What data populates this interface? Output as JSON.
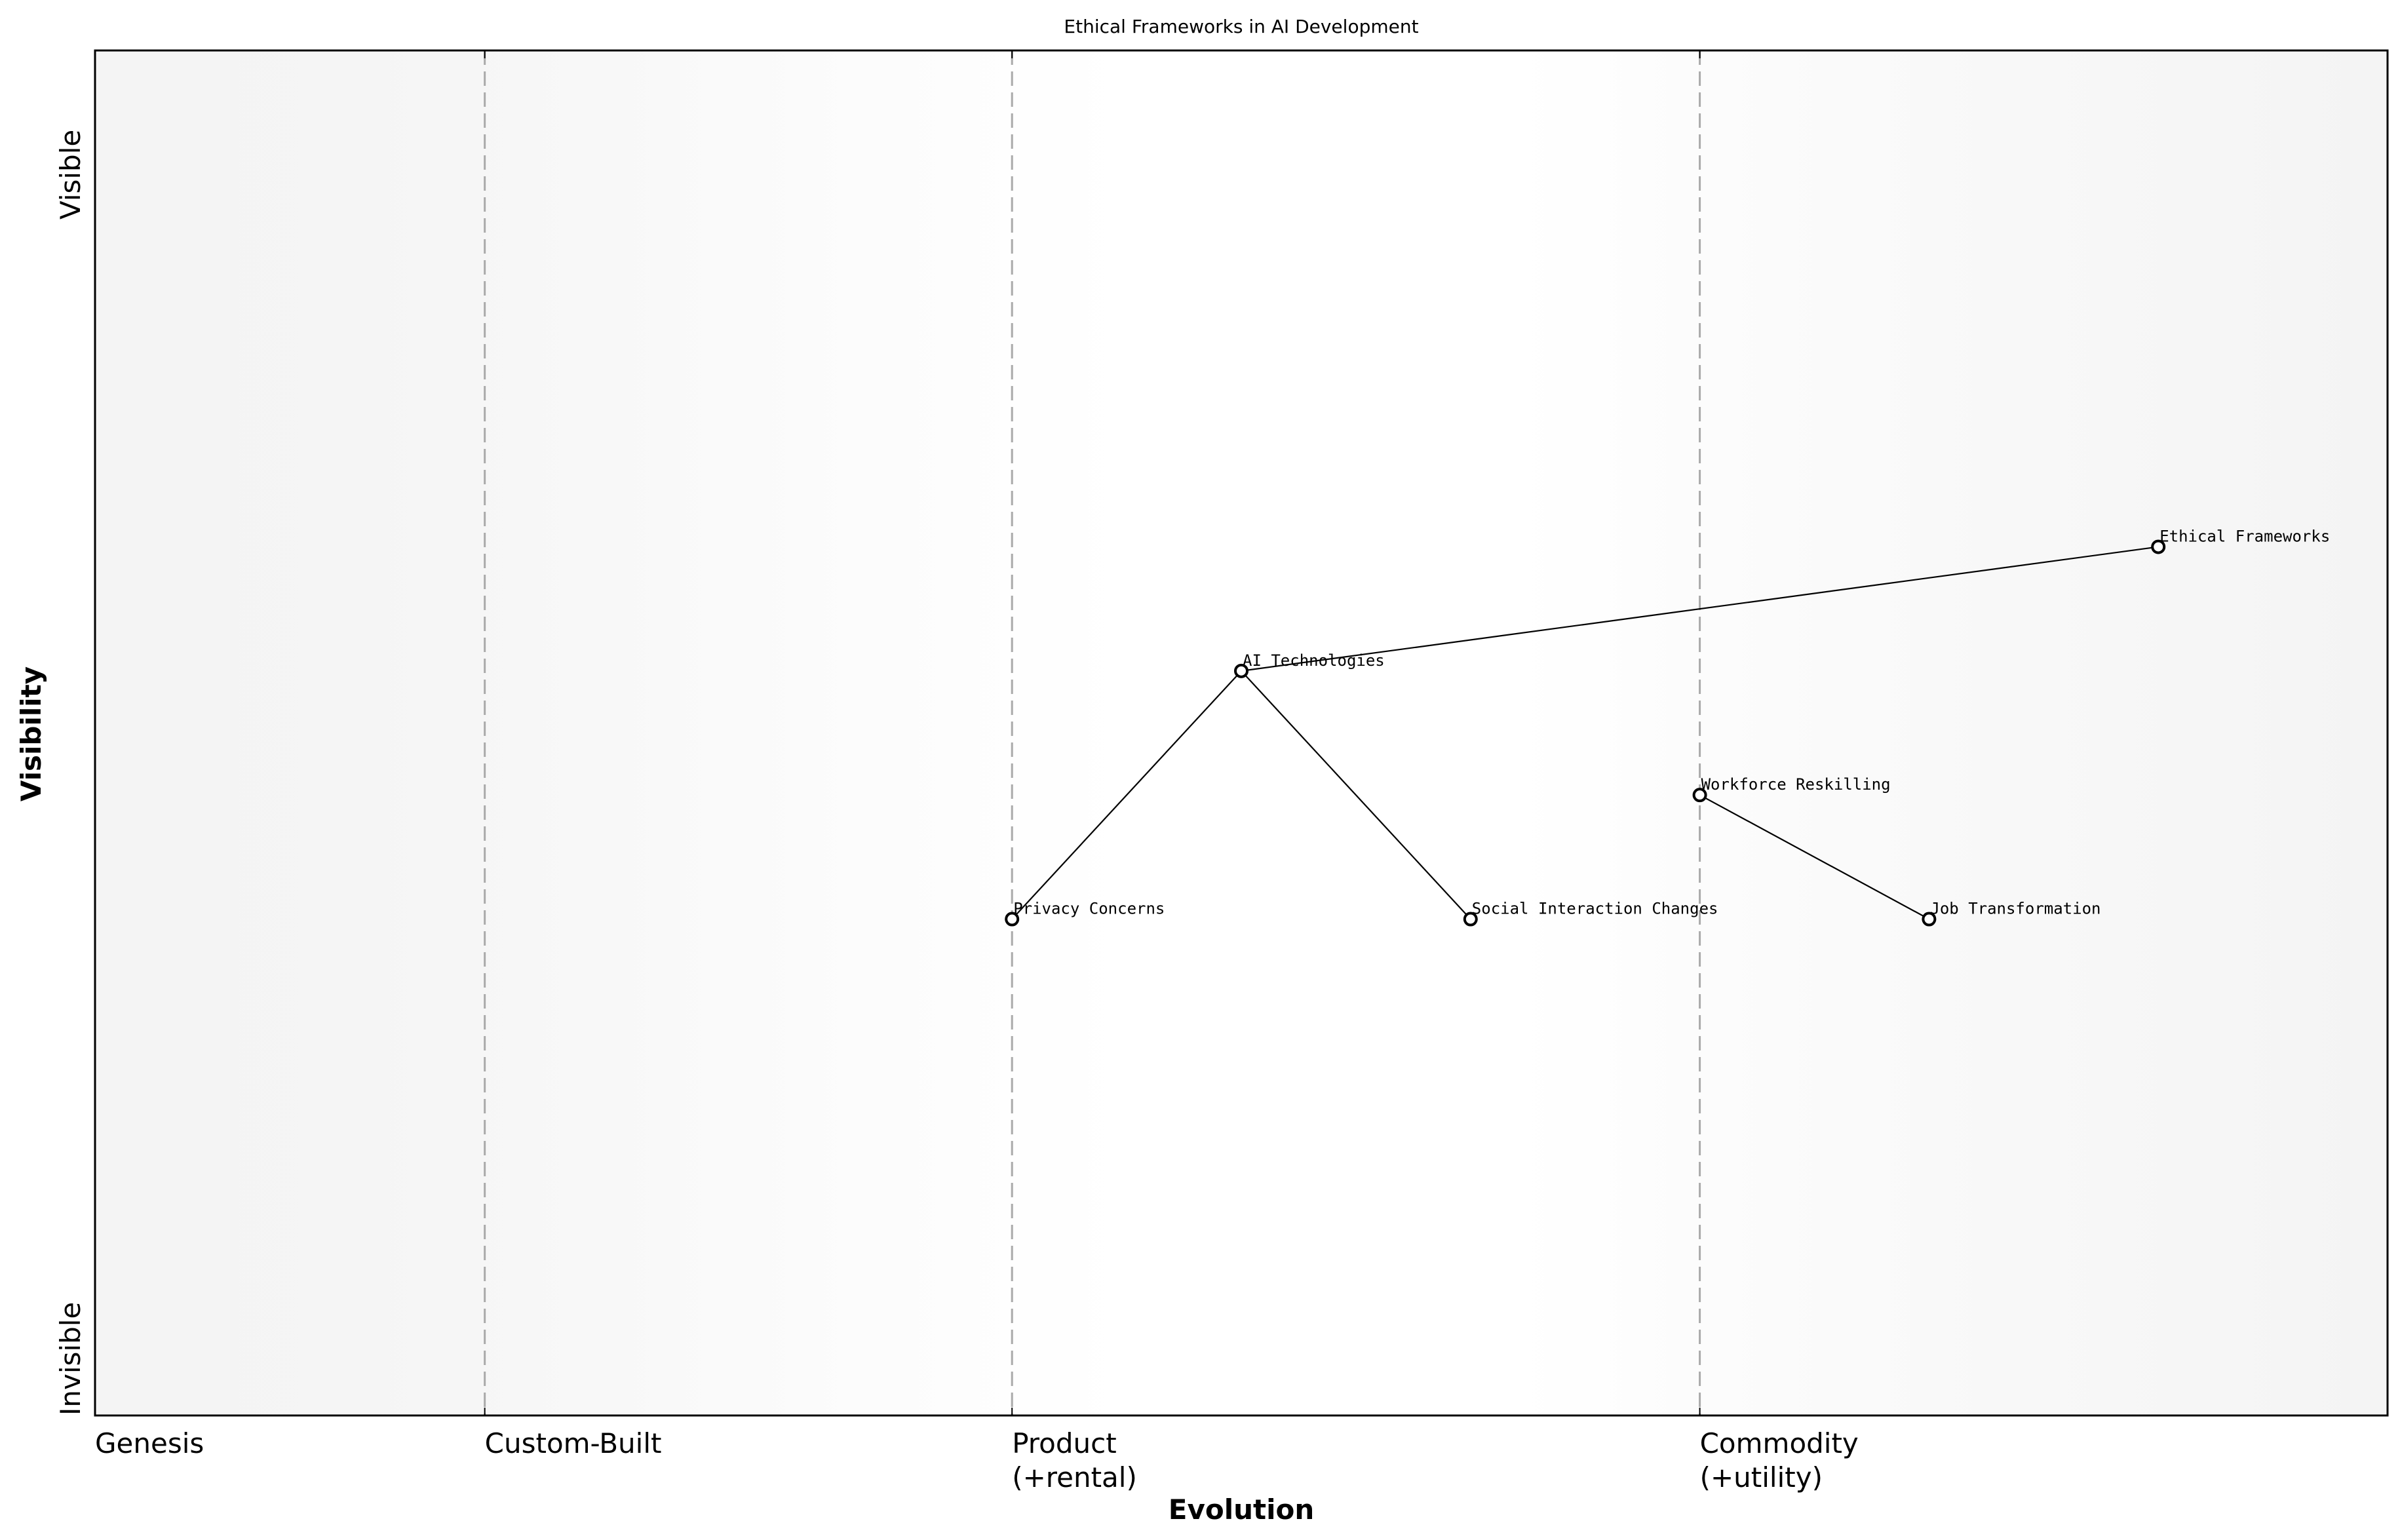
{
  "chart_data": {
    "type": "scatter",
    "subtype": "wardley-map",
    "title": "Ethical Frameworks in AI Development",
    "xlabel": "Evolution",
    "ylabel": "Visibility",
    "xlim": [
      0,
      1
    ],
    "ylim": [
      0,
      1.1
    ],
    "grid": false,
    "x_stages": [
      {
        "label": "Genesis",
        "x": 0.0
      },
      {
        "label": "Custom-Built",
        "x": 0.17
      },
      {
        "label": "Product\n(+rental)",
        "x": 0.4
      },
      {
        "label": "Commodity\n(+utility)",
        "x": 0.7
      }
    ],
    "y_ticks": [
      {
        "label": "Invisible",
        "y": 0.0
      },
      {
        "label": "Visible",
        "y": 1.0
      }
    ],
    "stage_dividers": [
      0.17,
      0.4,
      0.7
    ],
    "points": [
      {
        "name": "AI Technologies",
        "x": 0.5,
        "y": 0.6
      },
      {
        "name": "Privacy Concerns",
        "x": 0.4,
        "y": 0.4
      },
      {
        "name": "Social Interaction Changes",
        "x": 0.6,
        "y": 0.4
      },
      {
        "name": "Workforce Reskilling",
        "x": 0.7,
        "y": 0.5
      },
      {
        "name": "Job Transformation",
        "x": 0.8,
        "y": 0.4
      },
      {
        "name": "Ethical Frameworks",
        "x": 0.9,
        "y": 0.7
      }
    ],
    "links": [
      [
        "AI Technologies",
        "Privacy Concerns"
      ],
      [
        "AI Technologies",
        "Social Interaction Changes"
      ],
      [
        "AI Technologies",
        "Ethical Frameworks"
      ],
      [
        "Workforce Reskilling",
        "Job Transformation"
      ]
    ]
  },
  "colors": {
    "background_edge": "#f4f4f4",
    "background_center": "#ffffff",
    "divider": "#aaaaaa",
    "axis": "#000000",
    "marker_fill": "#ffffff",
    "marker_edge": "#000000"
  }
}
